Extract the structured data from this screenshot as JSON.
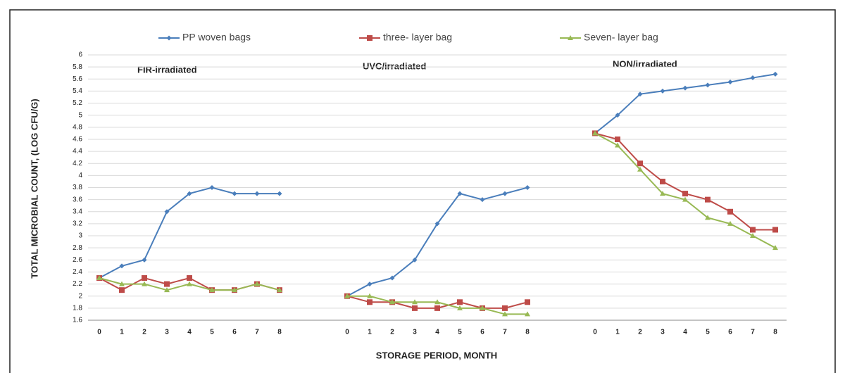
{
  "chart_data": {
    "type": "line",
    "ylabel": "TOTAL MICROBIAL COUNT, (LOG CFU/G)",
    "xlabel": "STORAGE PERIOD, MONTH",
    "annotations": [
      "FIR-irradiated",
      "UVC/irradiated",
      "NON/irradiated"
    ],
    "categories": [
      "0",
      "1",
      "2",
      "3",
      "4",
      "5",
      "6",
      "7",
      "8",
      null,
      null,
      "0",
      "1",
      "2",
      "3",
      "4",
      "5",
      "6",
      "7",
      "8",
      null,
      null,
      "0",
      "1",
      "2",
      "3",
      "4",
      "5",
      "6",
      "7",
      "8"
    ],
    "series": [
      {
        "name": "PP woven bags",
        "color": "#4a7ebb",
        "marker": "diamond",
        "values": [
          2.3,
          2.5,
          2.6,
          3.4,
          3.7,
          3.8,
          3.7,
          3.7,
          3.7,
          null,
          null,
          2.0,
          2.2,
          2.3,
          2.6,
          3.2,
          3.7,
          3.6,
          3.7,
          3.8,
          null,
          null,
          4.7,
          5.0,
          5.35,
          5.4,
          5.45,
          5.5,
          5.55,
          5.62,
          5.68
        ]
      },
      {
        "name": "three- layer bag",
        "color": "#be4b48",
        "marker": "square",
        "values": [
          2.3,
          2.1,
          2.3,
          2.2,
          2.3,
          2.1,
          2.1,
          2.2,
          2.1,
          null,
          null,
          2.0,
          1.9,
          1.9,
          1.8,
          1.8,
          1.9,
          1.8,
          1.8,
          1.9,
          null,
          null,
          4.7,
          4.6,
          4.2,
          3.9,
          3.7,
          3.6,
          3.4,
          3.1,
          3.1
        ]
      },
      {
        "name": "Seven- layer bag",
        "color": "#98b954",
        "marker": "triangle",
        "values": [
          2.3,
          2.2,
          2.2,
          2.1,
          2.2,
          2.1,
          2.1,
          2.2,
          2.1,
          null,
          null,
          2.0,
          2.0,
          1.9,
          1.9,
          1.9,
          1.8,
          1.8,
          1.7,
          1.7,
          null,
          null,
          4.7,
          4.5,
          4.1,
          3.7,
          3.6,
          3.3,
          3.2,
          3.0,
          2.8
        ]
      }
    ],
    "ylim": [
      1.6,
      6
    ],
    "yticks": [
      1.6,
      1.8,
      2,
      2.2,
      2.4,
      2.6,
      2.8,
      3,
      3.2,
      3.4,
      3.6,
      3.8,
      4,
      4.2,
      4.4,
      4.6,
      4.8,
      5,
      5.2,
      5.4,
      5.6,
      5.8,
      6
    ],
    "grid": true,
    "legend": "top"
  }
}
